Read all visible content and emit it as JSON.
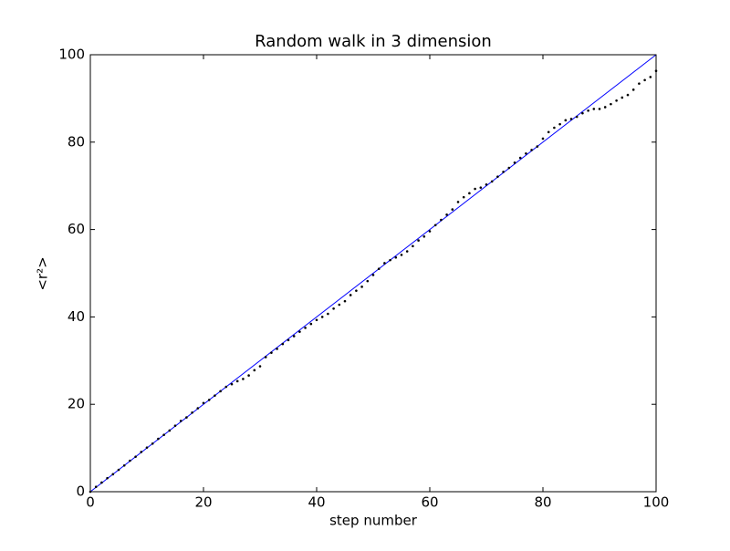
{
  "chart_data": {
    "type": "line",
    "title": "Random walk in 3 dimension",
    "x_label": "step number",
    "y_label": "<r²>",
    "xlim": [
      0,
      100
    ],
    "ylim": [
      0,
      100
    ],
    "xticks": [
      0,
      20,
      40,
      60,
      80,
      100
    ],
    "yticks": [
      0,
      20,
      40,
      60,
      80,
      100
    ],
    "series": [
      {
        "color": "#0000ff",
        "style": "solid",
        "x": [
          0,
          100
        ],
        "values": [
          0,
          100
        ]
      },
      {
        "color": "#000000",
        "style": "dots",
        "x": [
          0,
          1,
          2,
          3,
          4,
          5,
          6,
          7,
          8,
          9,
          10,
          11,
          12,
          13,
          14,
          15,
          16,
          17,
          18,
          19,
          20,
          21,
          22,
          23,
          24,
          25,
          26,
          27,
          28,
          29,
          30,
          31,
          32,
          33,
          34,
          35,
          36,
          37,
          38,
          39,
          40,
          41,
          42,
          43,
          44,
          45,
          46,
          47,
          48,
          49,
          50,
          51,
          52,
          53,
          54,
          55,
          56,
          57,
          58,
          59,
          60,
          61,
          62,
          63,
          64,
          65,
          66,
          67,
          68,
          69,
          70,
          71,
          72,
          73,
          74,
          75,
          76,
          77,
          78,
          79,
          80,
          81,
          82,
          83,
          84,
          85,
          86,
          87,
          88,
          89,
          90,
          91,
          92,
          93,
          94,
          95,
          96,
          97,
          98,
          99,
          100
        ],
        "values": [
          0,
          1.1,
          2.1,
          3.1,
          4.0,
          5.0,
          6.0,
          7.1,
          8.0,
          9.1,
          10.1,
          11.0,
          12.1,
          13.0,
          14.0,
          15.1,
          16.2,
          17.0,
          18.1,
          19.1,
          20.3,
          21.0,
          22.0,
          23.0,
          24.0,
          24.6,
          25.3,
          25.8,
          26.6,
          27.8,
          28.7,
          30.8,
          31.8,
          32.7,
          33.8,
          34.7,
          35.6,
          36.6,
          37.5,
          38.4,
          39.3,
          40.0,
          40.7,
          41.9,
          42.8,
          43.6,
          45.0,
          46.0,
          46.9,
          48.2,
          49.6,
          51.0,
          52.3,
          53.0,
          53.6,
          54.2,
          55.0,
          56.2,
          57.5,
          58.4,
          59.6,
          61.0,
          62.2,
          63.4,
          64.6,
          66.3,
          67.4,
          68.3,
          69.3,
          69.6,
          70.3,
          71.0,
          72.1,
          73.2,
          74.1,
          75.3,
          76.4,
          77.4,
          78.2,
          79.0,
          80.8,
          82.3,
          83.3,
          84.1,
          85.0,
          85.3,
          85.8,
          86.6,
          87.2,
          87.6,
          87.6,
          88.0,
          88.7,
          89.5,
          90.2,
          90.8,
          92.0,
          93.4,
          94.2,
          94.9,
          96.3
        ]
      }
    ]
  }
}
